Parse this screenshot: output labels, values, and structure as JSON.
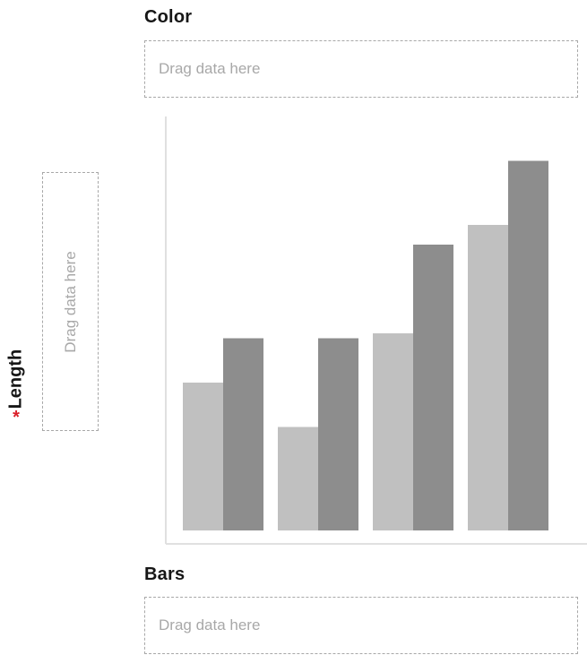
{
  "slots": {
    "color": {
      "label": "Color",
      "placeholder": "Drag data here"
    },
    "length": {
      "label": "Length",
      "required_mark": "*",
      "placeholder": "Drag data here"
    },
    "bars": {
      "label": "Bars",
      "placeholder": "Drag data here"
    }
  },
  "chart_data": {
    "type": "bar",
    "categories": [
      "",
      "",
      "",
      ""
    ],
    "series": [
      {
        "values": [
          3.0,
          2.1,
          4.0,
          6.2
        ],
        "color": "#c0c0c0"
      },
      {
        "values": [
          3.9,
          3.9,
          5.8,
          7.5
        ],
        "color": "#8d8d8d"
      }
    ],
    "ylim": [
      0,
      8.4
    ],
    "grid": false,
    "title": "",
    "xlabel": "",
    "ylabel": ""
  }
}
